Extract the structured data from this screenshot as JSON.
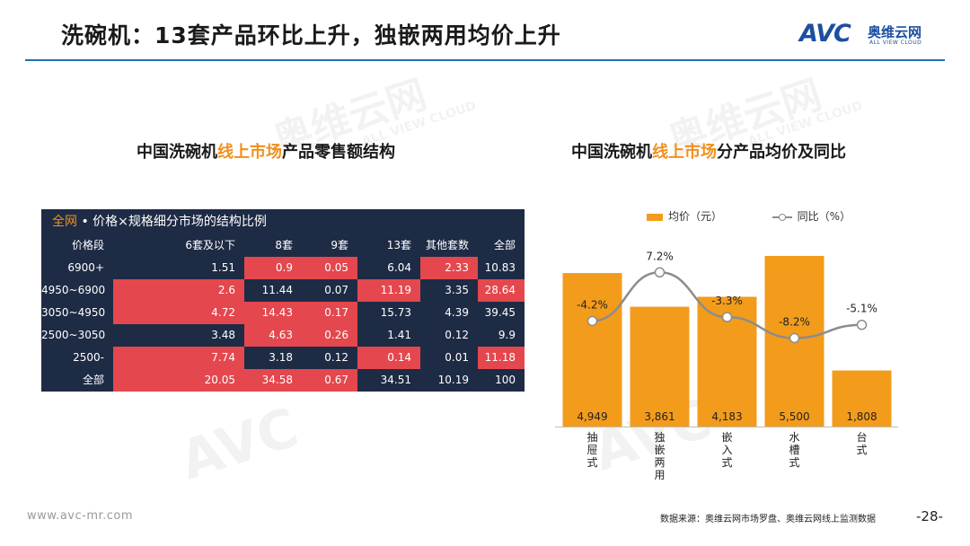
{
  "slide": {
    "title": "洗碗机：13套产品环比上升，独嵌两用均价上升",
    "logo_mark": "AVC",
    "logo_cn": "奥维云网",
    "logo_en": "ALL VIEW CLOUD",
    "watermark_cn": "奥维云网",
    "watermark_en": "ALL VIEW CLOUD",
    "footer_url": "www.avc-mr.com",
    "source": "数据来源：奥维云网市场罗盘、奥维云网线上监测数据",
    "page_number": "-28-"
  },
  "colors": {
    "accent": "#f0901c",
    "bar": "#f39c1b",
    "table_dark": "#1e2b45",
    "table_red": "#e5474e",
    "rule": "#1f6fb5"
  },
  "left_panel": {
    "title_pre": "中国洗碗机",
    "title_hl": "线上市场",
    "title_post": "产品零售额结构",
    "banner_hl": "全网",
    "banner_text": " • 价格×规格细分市场的结构比例",
    "headers": [
      "价格段",
      "6套及以下",
      "8套",
      "9套",
      "13套",
      "其他套数",
      "全部"
    ],
    "rows": [
      {
        "cells": [
          "6900+",
          "1.51",
          "0.9",
          "0.05",
          "6.04",
          "2.33",
          "10.83"
        ],
        "red": [
          false,
          false,
          true,
          true,
          false,
          true,
          false
        ]
      },
      {
        "cells": [
          "4950~6900",
          "2.6",
          "11.44",
          "0.07",
          "11.19",
          "3.35",
          "28.64"
        ],
        "red": [
          false,
          true,
          false,
          false,
          true,
          false,
          true
        ]
      },
      {
        "cells": [
          "3050~4950",
          "4.72",
          "14.43",
          "0.17",
          "15.73",
          "4.39",
          "39.45"
        ],
        "red": [
          false,
          true,
          true,
          true,
          false,
          false,
          false
        ]
      },
      {
        "cells": [
          "2500~3050",
          "3.48",
          "4.63",
          "0.26",
          "1.41",
          "0.12",
          "9.9"
        ],
        "red": [
          false,
          false,
          true,
          true,
          false,
          false,
          false
        ]
      },
      {
        "cells": [
          "2500-",
          "7.74",
          "3.18",
          "0.12",
          "0.14",
          "0.01",
          "11.18"
        ],
        "red": [
          false,
          true,
          false,
          false,
          true,
          false,
          true
        ]
      },
      {
        "cells": [
          "全部",
          "20.05",
          "34.58",
          "0.67",
          "34.51",
          "10.19",
          "100"
        ],
        "red": [
          false,
          true,
          true,
          true,
          false,
          false,
          false
        ]
      }
    ]
  },
  "right_panel": {
    "title_pre": "中国洗碗机",
    "title_hl": "线上市场",
    "title_post": "分产品均价及同比",
    "legend_bar": "均价（元）",
    "legend_line": "同比（%）"
  },
  "chart_data": {
    "type": "bar",
    "categories": [
      "抽屉式",
      "独嵌两用",
      "嵌入式",
      "水槽式",
      "台式"
    ],
    "series": [
      {
        "name": "均价（元）",
        "type": "bar",
        "values": [
          4949,
          3861,
          4183,
          5500,
          1808
        ],
        "labels": [
          "4,949",
          "3,861",
          "4,183",
          "5,500",
          "1,808"
        ]
      },
      {
        "name": "同比（%）",
        "type": "line",
        "values": [
          -4.2,
          7.2,
          -3.3,
          -8.2,
          -5.1
        ],
        "labels": [
          "-4.2%",
          "7.2%",
          "-3.3%",
          "-8.2%",
          "-5.1%"
        ]
      }
    ],
    "ylim_bar": [
      0,
      5500
    ],
    "ylim_line": [
      -10,
      10
    ],
    "grid": false,
    "legend": "top"
  }
}
